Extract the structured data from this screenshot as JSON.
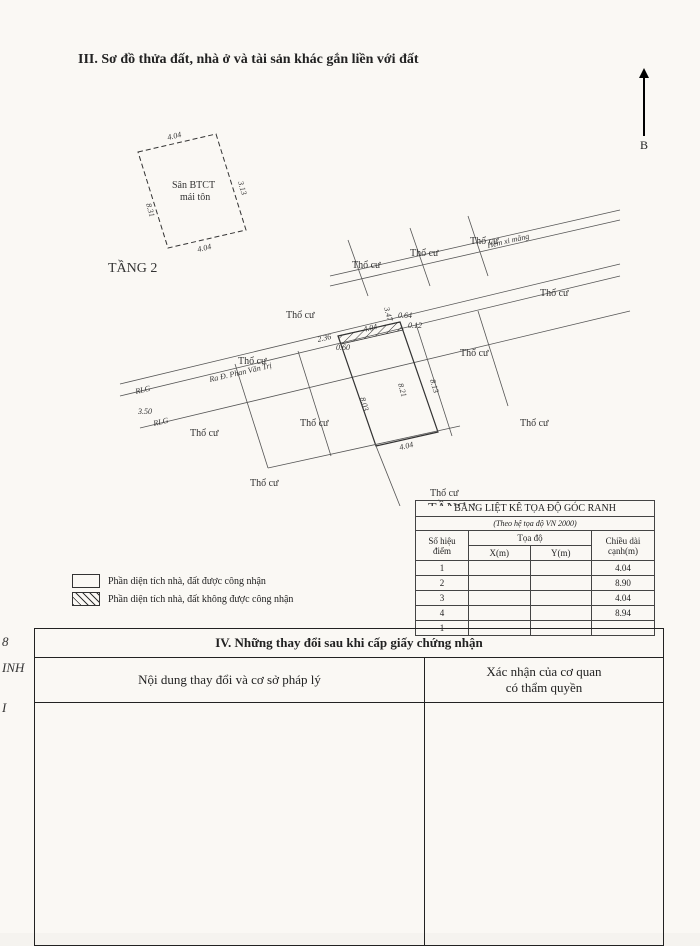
{
  "section3_title": "III. Sơ đồ thửa đất, nhà ở và tài sản khác gắn liền với đất",
  "north_label": "B",
  "diagram": {
    "floor1_label": "TẦNG 1",
    "floor2_label": "TẦNG 2",
    "road_label": "Ra Đ. Phan Văn Trị",
    "alley_label": "Hẻm xi măng",
    "rlg": "RLG",
    "tho_cu": "Thổ cư",
    "san_label": "Sân BTCT\nmái tôn",
    "dims": {
      "t2_top": "4.04",
      "t2_right": "3.13",
      "t2_left": "8.31",
      "t2_bottom": "4.04",
      "seg_a": "3.47",
      "seg_b": "0.64",
      "seg_c": "2.36",
      "seg_d": "0.60",
      "seg_e": "4.04",
      "seg_f": "0.12",
      "t1_left": "8.03",
      "t1_mid": "8.21",
      "t1_right": "8.13",
      "t1_bottom": "4.04",
      "road_w": "3.50"
    }
  },
  "coord": {
    "title": "BẢNG LIỆT KÊ TỌA ĐỘ GÓC RANH",
    "subtitle": "(Theo hệ tọa độ VN 2000)",
    "col_point": "Số hiệu\nđiểm",
    "col_coord": "Tọa độ",
    "col_x": "X(m)",
    "col_y": "Y(m)",
    "col_len": "Chiều dài\ncạnh(m)",
    "rows": [
      {
        "pt": "1",
        "x": "",
        "y": "",
        "len": "4.04"
      },
      {
        "pt": "2",
        "x": "",
        "y": "",
        "len": "8.90"
      },
      {
        "pt": "3",
        "x": "",
        "y": "",
        "len": "4.04"
      },
      {
        "pt": "4",
        "x": "",
        "y": "",
        "len": "8.94"
      },
      {
        "pt": "1",
        "x": "",
        "y": "",
        "len": ""
      }
    ]
  },
  "legend": {
    "approved": "Phần diện tích nhà, đất được công nhận",
    "not_approved": "Phần diện tích nhà, đất không được công nhận"
  },
  "section4_title": "IV. Những thay đổi sau khi cấp giấy chứng nhận",
  "section4_col1": "Nội dung thay đổi và cơ sở pháp lý",
  "section4_col2": "Xác nhận của cơ quan\ncó thẩm quyền",
  "margin": {
    "a": "8",
    "b": "INH",
    "c": "I"
  }
}
